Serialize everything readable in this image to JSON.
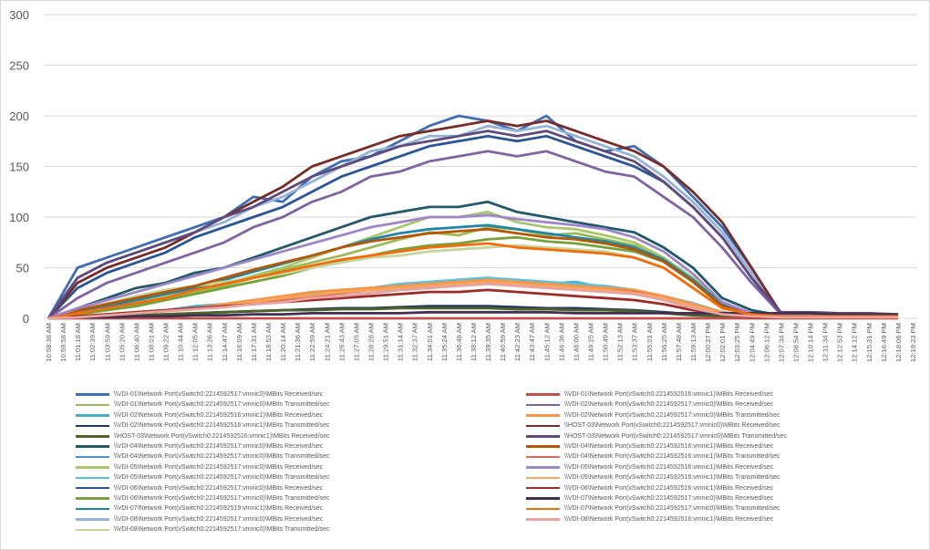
{
  "chart_data": {
    "type": "line",
    "title": "",
    "xlabel": "",
    "ylabel": "",
    "ylim": [
      0,
      300
    ],
    "yticks": [
      0,
      50,
      100,
      150,
      200,
      250,
      300
    ],
    "grid": true,
    "legend_placement": "bottom",
    "tick_labels": [
      "10:58:38 AM",
      "10:59:58 AM",
      "11:01:18 AM",
      "11:02:39 AM",
      "11:03:59 AM",
      "11:05:20 AM",
      "11:06:40 AM",
      "11:08:01 AM",
      "11:09:22 AM",
      "11:10:44 AM",
      "11:12:05 AM",
      "11:13:26 AM",
      "11:14:47 AM",
      "11:16:09 AM",
      "11:17:31 AM",
      "11:18:53 AM",
      "11:20:14 AM",
      "11:21:36 AM",
      "11:22:59 AM",
      "11:24:21 AM",
      "11:25:43 AM",
      "11:27:05 AM",
      "11:28:28 AM",
      "11:29:51 AM",
      "11:31:14 AM",
      "11:32:37 AM",
      "11:34:01 AM",
      "11:35:24 AM",
      "11:36:48 AM",
      "11:38:12 AM",
      "11:39:35 AM",
      "11:40:59 AM",
      "11:42:23 AM",
      "11:43:47 AM",
      "11:45:12 AM",
      "11:46:36 AM",
      "11:48:00 AM",
      "11:49:25 AM",
      "11:50:49 AM",
      "11:52:13 AM",
      "11:53:37 AM",
      "11:55:01 AM",
      "11:56:25 AM",
      "11:57:48 AM",
      "11:59:13 AM",
      "12:00:37 PM",
      "12:02:01 PM",
      "12:03:25 PM",
      "12:04:49 PM",
      "12:06:12 PM",
      "12:07:34 PM",
      "12:08:54 PM",
      "12:10:14 PM",
      "12:11:34 PM",
      "12:12:53 PM",
      "12:14:12 PM",
      "12:15:31 PM",
      "12:16:49 PM",
      "12:18:06 PM",
      "12:19:23 PM"
    ],
    "x": [
      "10:58:38 AM",
      "11:01:18 AM",
      "11:03:59 AM",
      "11:06:40 AM",
      "11:09:22 AM",
      "11:12:05 AM",
      "11:14:47 AM",
      "11:17:31 AM",
      "11:20:14 AM",
      "11:22:59 AM",
      "11:25:43 AM",
      "11:28:28 AM",
      "11:31:14 AM",
      "11:34:01 AM",
      "11:36:48 AM",
      "11:39:35 AM",
      "11:42:23 AM",
      "11:45:12 AM",
      "11:48:00 AM",
      "11:50:49 AM",
      "11:53:37 AM",
      "11:56:25 AM",
      "11:59:13 AM",
      "12:02:01 PM",
      "12:04:49 PM",
      "12:07:34 PM",
      "12:10:14 PM",
      "12:12:53 PM",
      "12:15:31 PM",
      "12:18:06 PM"
    ],
    "series": [
      {
        "name": "\\\\VDI-01\\Network Port(vSwitch0:2214592517:vmnic0)\\MBits Received/sec",
        "color": "#3e6eb4",
        "column": "left",
        "values": [
          0,
          50,
          60,
          70,
          80,
          90,
          100,
          120,
          115,
          140,
          155,
          160,
          175,
          190,
          200,
          195,
          185,
          200,
          175,
          165,
          170,
          150,
          120,
          90,
          50,
          4,
          4,
          3,
          3,
          2
        ]
      },
      {
        "name": "\\\\VDI-01\\Network Port(vSwitch0:2214592517:vmnic0)\\MBits Transmitted/sec",
        "color": "#9bbb59",
        "column": "left",
        "values": [
          0,
          4,
          8,
          14,
          18,
          26,
          32,
          40,
          48,
          55,
          62,
          70,
          78,
          85,
          82,
          90,
          88,
          82,
          84,
          78,
          72,
          60,
          38,
          12,
          4,
          3,
          3,
          2,
          2,
          2
        ]
      },
      {
        "name": "\\\\VDI-02\\Network Port(vSwitch0:2214592516:vmnic1)\\MBits Received/sec",
        "color": "#4bacc6",
        "column": "left",
        "values": [
          0,
          2,
          3,
          5,
          8,
          12,
          14,
          16,
          20,
          24,
          26,
          30,
          32,
          34,
          38,
          40,
          36,
          34,
          36,
          30,
          26,
          20,
          14,
          6,
          2,
          1,
          1,
          1,
          1,
          1
        ]
      },
      {
        "name": "\\\\VDI-02\\Network Port(vSwitch0:2214592516:vmnic1)\\MBits Transmitted/sec",
        "color": "#1f3864",
        "column": "left",
        "values": [
          0,
          1,
          2,
          3,
          4,
          5,
          6,
          7,
          8,
          9,
          10,
          10,
          11,
          12,
          12,
          12,
          11,
          10,
          10,
          9,
          8,
          6,
          4,
          2,
          1,
          1,
          1,
          1,
          1,
          1
        ]
      },
      {
        "name": "\\\\HOST-03\\Network Port(vSwitch0:2214592516:vmnic1)\\MBits Received/sec",
        "color": "#4f6228",
        "column": "left",
        "values": [
          0,
          1,
          2,
          3,
          4,
          5,
          6,
          7,
          8,
          8,
          9,
          9,
          10,
          10,
          10,
          10,
          9,
          9,
          8,
          8,
          7,
          5,
          3,
          2,
          1,
          1,
          1,
          1,
          1,
          1
        ]
      },
      {
        "name": "\\\\VDI-04\\Network Port(vSwitch0:2214592517:vmnic0)\\MBits Received/sec",
        "color": "#215968",
        "column": "left",
        "values": [
          0,
          10,
          20,
          30,
          35,
          45,
          50,
          60,
          70,
          80,
          90,
          100,
          105,
          110,
          110,
          115,
          105,
          100,
          95,
          90,
          85,
          70,
          50,
          20,
          8,
          3,
          3,
          2,
          2,
          2
        ]
      },
      {
        "name": "\\\\VDI-04\\Network Port(vSwitch0:2214592517:vmnic0)\\MBits Transmitted/sec",
        "color": "#558ed5",
        "column": "left",
        "values": [
          0,
          2,
          4,
          6,
          8,
          10,
          12,
          14,
          18,
          20,
          22,
          25,
          28,
          30,
          34,
          36,
          34,
          32,
          30,
          28,
          26,
          20,
          12,
          6,
          2,
          1,
          1,
          1,
          1,
          1
        ]
      },
      {
        "name": "\\\\VDI-05\\Network Port(vSwitch0:2214592517:vmnic0)\\MBits Received/sec",
        "color": "#a9c76a",
        "column": "left",
        "values": [
          0,
          5,
          10,
          16,
          22,
          28,
          34,
          42,
          50,
          60,
          70,
          80,
          90,
          100,
          100,
          105,
          95,
          90,
          88,
          82,
          75,
          60,
          40,
          15,
          5,
          3,
          3,
          2,
          2,
          2
        ]
      },
      {
        "name": "\\\\VDI-05\\Network Port(vSwitch0:2214592517:vmnic0)\\MBits Transmitted/sec",
        "color": "#5cc0dc",
        "column": "left",
        "values": [
          0,
          2,
          4,
          6,
          8,
          10,
          13,
          16,
          20,
          24,
          28,
          30,
          34,
          36,
          38,
          40,
          38,
          36,
          34,
          32,
          28,
          22,
          15,
          6,
          2,
          1,
          1,
          1,
          1,
          1
        ]
      },
      {
        "name": "\\\\VDI-06\\Network Port(vSwitch0:2214592517:vmnic0)\\MBits Received/sec",
        "color": "#2c5597",
        "column": "left",
        "values": [
          0,
          30,
          45,
          55,
          65,
          80,
          90,
          100,
          110,
          125,
          140,
          150,
          160,
          170,
          175,
          180,
          175,
          180,
          170,
          160,
          150,
          135,
          110,
          80,
          40,
          4,
          4,
          3,
          3,
          2
        ]
      },
      {
        "name": "\\\\VDI-06\\Network Port(vSwitch0:2214592517:vmnic0)\\MBits Transmitted/sec",
        "color": "#77a13a",
        "column": "left",
        "values": [
          0,
          4,
          8,
          12,
          18,
          24,
          30,
          36,
          42,
          50,
          56,
          62,
          68,
          72,
          74,
          78,
          80,
          76,
          74,
          70,
          66,
          56,
          36,
          12,
          4,
          2,
          2,
          2,
          2,
          2
        ]
      },
      {
        "name": "\\\\VDI-07\\Network Port(vSwitch0:2214592519:vmnic1)\\MBits Received/sec",
        "color": "#1f86a8",
        "column": "left",
        "values": [
          0,
          6,
          12,
          18,
          24,
          30,
          38,
          46,
          54,
          62,
          70,
          78,
          84,
          88,
          90,
          92,
          88,
          84,
          80,
          76,
          70,
          58,
          38,
          14,
          4,
          2,
          2,
          2,
          2,
          2
        ]
      },
      {
        "name": "\\\\VDI-08\\Network Port(vSwitch0:2214592517:vmnic0)\\MBits Received/sec",
        "color": "#95b3d7",
        "column": "left",
        "values": [
          0,
          40,
          55,
          65,
          75,
          85,
          95,
          110,
          120,
          135,
          150,
          165,
          170,
          180,
          180,
          190,
          185,
          190,
          180,
          170,
          160,
          140,
          115,
          85,
          45,
          5,
          5,
          4,
          4,
          3
        ]
      },
      {
        "name": "\\\\VDI-08\\Network Port(vSwitch0:2214592517:vmnic0)\\MBits Transmitted/sec",
        "color": "#c3d69b",
        "column": "left",
        "values": [
          0,
          8,
          15,
          22,
          28,
          32,
          36,
          40,
          44,
          50,
          55,
          60,
          62,
          66,
          68,
          70,
          72,
          70,
          68,
          66,
          60,
          50,
          30,
          10,
          5,
          3,
          3,
          2,
          2,
          2
        ]
      },
      {
        "name": "\\\\VDI-01\\Network Port(vSwitch0:2214592516:vmnic1)\\MBits Received/sec",
        "color": "#c0504d",
        "column": "right",
        "values": [
          0,
          0,
          0,
          0,
          0,
          0,
          0,
          0,
          0,
          0,
          0,
          0,
          0,
          0,
          0,
          0,
          0,
          0,
          0,
          0,
          0,
          0,
          0,
          0,
          0,
          0,
          0,
          0,
          0,
          0
        ]
      },
      {
        "name": "\\\\VDI-02\\Network Port(vSwitch0:2214592517:vmnic0)\\MBits Received/sec",
        "color": "#8064a2",
        "column": "right",
        "values": [
          0,
          20,
          35,
          45,
          55,
          65,
          75,
          90,
          100,
          115,
          125,
          140,
          145,
          155,
          160,
          165,
          160,
          165,
          155,
          145,
          140,
          120,
          100,
          70,
          35,
          4,
          4,
          3,
          3,
          2
        ]
      },
      {
        "name": "\\\\VDI-02\\Network Port(vSwitch0:2214592517:vmnic0)\\MBits Transmitted/sec",
        "color": "#f79646",
        "column": "right",
        "values": [
          0,
          2,
          4,
          6,
          8,
          10,
          14,
          18,
          22,
          26,
          28,
          30,
          32,
          34,
          36,
          38,
          36,
          34,
          32,
          30,
          28,
          22,
          14,
          6,
          2,
          1,
          1,
          1,
          1,
          1
        ]
      },
      {
        "name": "\\\\HOST-03\\Network Port(vSwitch0:2214592517:vmnic0)\\MBits Received/sec",
        "color": "#772c2a",
        "column": "right",
        "values": [
          0,
          35,
          50,
          60,
          70,
          85,
          100,
          115,
          130,
          150,
          160,
          170,
          180,
          185,
          190,
          195,
          190,
          195,
          185,
          175,
          165,
          150,
          125,
          95,
          50,
          5,
          5,
          4,
          4,
          3
        ]
      },
      {
        "name": "\\\\HOST-03\\Network Port(vSwitch0:2214592517:vmnic0)\\MBits Transmitted/sec",
        "color": "#604a7b",
        "column": "right",
        "values": [
          0,
          40,
          55,
          65,
          75,
          85,
          100,
          110,
          125,
          140,
          150,
          160,
          170,
          175,
          180,
          185,
          180,
          185,
          175,
          165,
          155,
          135,
          110,
          80,
          40,
          6,
          6,
          5,
          5,
          4
        ]
      },
      {
        "name": "\\\\VDI-04\\Network Port(vSwitch0:2214592516:vmnic1)\\MBits Received/sec",
        "color": "#b65708",
        "column": "right",
        "values": [
          0,
          8,
          14,
          20,
          26,
          32,
          40,
          48,
          55,
          62,
          70,
          76,
          80,
          84,
          86,
          88,
          84,
          80,
          78,
          74,
          68,
          56,
          36,
          12,
          4,
          2,
          2,
          2,
          2,
          2
        ]
      },
      {
        "name": "\\\\VDI-04\\Network Port(vSwitch0:2214592516:vmnic1)\\MBits Transmitted/sec",
        "color": "#d7695f",
        "column": "right",
        "values": [
          0,
          1,
          3,
          5,
          7,
          9,
          12,
          15,
          18,
          22,
          25,
          28,
          30,
          32,
          34,
          36,
          34,
          32,
          30,
          28,
          26,
          20,
          12,
          5,
          2,
          1,
          1,
          1,
          1,
          1
        ]
      },
      {
        "name": "\\\\VDI-05\\Network Port(vSwitch0:2214592516:vmnic1)\\MBits Received/sec",
        "color": "#9e86c9",
        "column": "right",
        "values": [
          0,
          10,
          18,
          26,
          34,
          42,
          50,
          58,
          66,
          74,
          82,
          90,
          95,
          100,
          100,
          102,
          98,
          95,
          92,
          88,
          80,
          66,
          44,
          16,
          5,
          3,
          3,
          2,
          2,
          2
        ]
      },
      {
        "name": "\\\\VDI-05\\Network Port(vSwitch0:2214592516:vmnic1)\\MBits Transmitted/sec",
        "color": "#f9a65a",
        "column": "right",
        "values": [
          0,
          2,
          4,
          6,
          8,
          10,
          13,
          16,
          20,
          23,
          26,
          28,
          30,
          32,
          34,
          36,
          34,
          32,
          30,
          28,
          25,
          20,
          12,
          5,
          2,
          1,
          1,
          1,
          1,
          1
        ]
      },
      {
        "name": "\\\\VDI-06\\Network Port(vSwitch0:2214592516:vmnic1)\\MBits Received/sec",
        "color": "#9c2b27",
        "column": "right",
        "values": [
          0,
          2,
          4,
          6,
          8,
          10,
          12,
          14,
          16,
          18,
          20,
          22,
          24,
          26,
          26,
          28,
          26,
          24,
          22,
          20,
          18,
          14,
          8,
          4,
          1,
          1,
          1,
          1,
          1,
          1
        ]
      },
      {
        "name": "\\\\VDI-07\\Network Port(vSwitch0:2214592517:vmnic0)\\MBits Received/sec",
        "color": "#403152",
        "column": "right",
        "values": [
          0,
          1,
          1,
          2,
          2,
          3,
          3,
          4,
          4,
          5,
          5,
          5,
          5,
          6,
          6,
          6,
          6,
          6,
          5,
          5,
          5,
          5,
          5,
          5,
          5,
          5,
          5,
          4,
          4,
          4
        ]
      },
      {
        "name": "\\\\VDI-07\\Network Port(vSwitch0:2214592517:vmnic0)\\MBits Transmitted/sec",
        "color": "#f46c0a",
        "column": "right",
        "values": [
          0,
          5,
          10,
          15,
          20,
          28,
          34,
          40,
          46,
          52,
          58,
          62,
          66,
          70,
          72,
          74,
          70,
          68,
          66,
          64,
          60,
          50,
          30,
          10,
          4,
          2,
          2,
          2,
          2,
          2
        ]
      },
      {
        "name": "\\\\VDI-08\\Network Port(vSwitch0:2214592516:vmnic1)\\MBits Received/sec",
        "color": "#e6a3a0",
        "column": "right",
        "values": [
          0,
          1,
          3,
          5,
          7,
          9,
          11,
          14,
          16,
          20,
          22,
          25,
          28,
          30,
          32,
          34,
          32,
          30,
          28,
          26,
          24,
          18,
          10,
          4,
          2,
          1,
          1,
          1,
          1,
          1
        ]
      }
    ]
  }
}
